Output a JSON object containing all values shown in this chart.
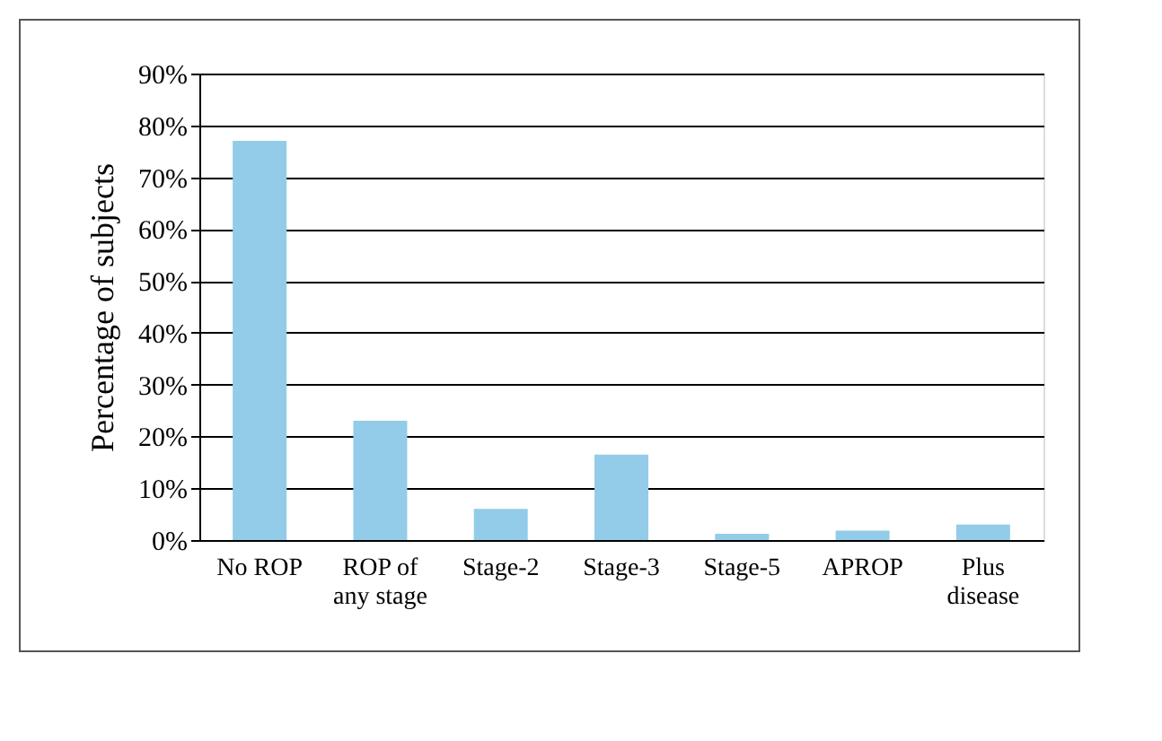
{
  "chart_data": {
    "type": "bar",
    "ylabel": "Percentage of subjects",
    "categories": [
      "No ROP",
      "ROP of\nany stage",
      "Stage-2",
      "Stage-3",
      "Stage-5",
      "APROP",
      "Plus\ndisease"
    ],
    "values": [
      77,
      23,
      6,
      16.5,
      1.2,
      1.8,
      3
    ],
    "color": "#93cce8",
    "ylim": [
      0,
      90
    ],
    "yticks": [
      {
        "value": 0,
        "label": "0%"
      },
      {
        "value": 10,
        "label": "10%"
      },
      {
        "value": 20,
        "label": "20%"
      },
      {
        "value": 30,
        "label": "30%"
      },
      {
        "value": 40,
        "label": "40%"
      },
      {
        "value": 50,
        "label": "50%"
      },
      {
        "value": 60,
        "label": "60%"
      },
      {
        "value": 70,
        "label": "70%"
      },
      {
        "value": 80,
        "label": "80%"
      },
      {
        "value": 90,
        "label": "90%"
      }
    ],
    "grid": "y"
  }
}
